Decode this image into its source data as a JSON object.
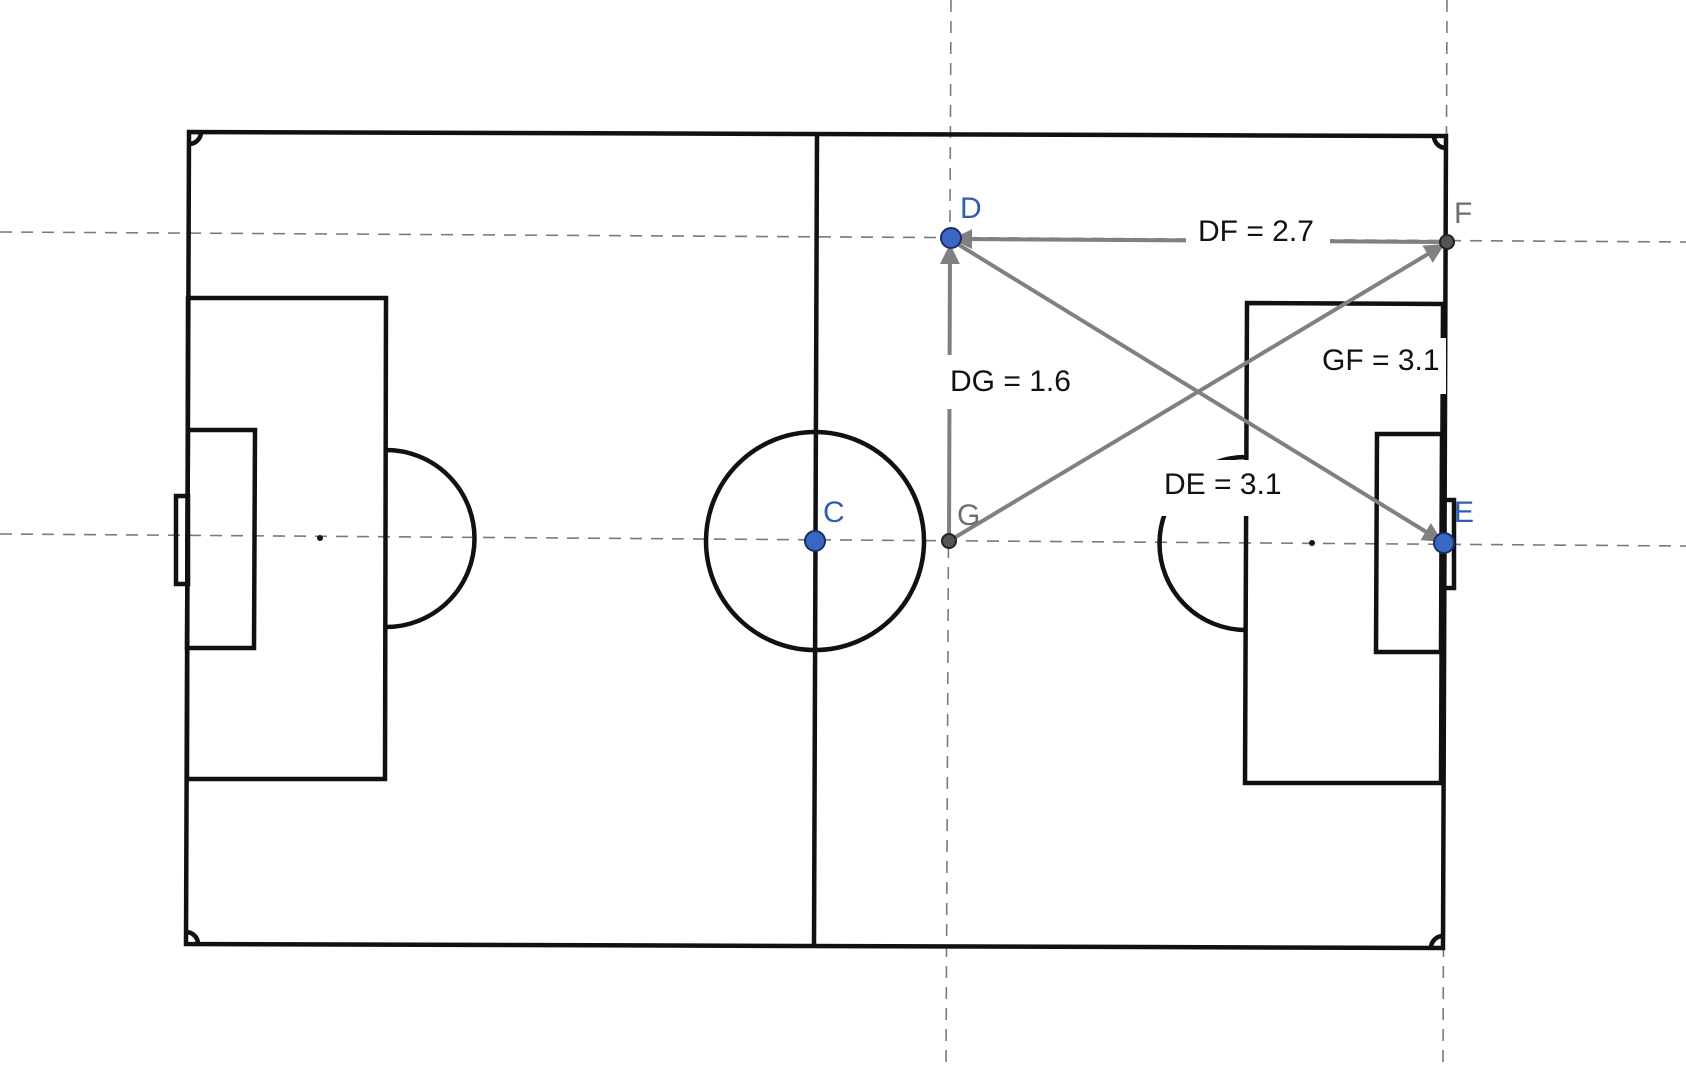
{
  "points": {
    "C": {
      "label": "C",
      "kind": "free",
      "color": "#3b67c4"
    },
    "D": {
      "label": "D",
      "kind": "free",
      "color": "#3b67c4"
    },
    "E": {
      "label": "E",
      "kind": "free",
      "color": "#3b67c4"
    },
    "F": {
      "label": "F",
      "kind": "derived",
      "color": "#555555"
    },
    "G": {
      "label": "G",
      "kind": "derived",
      "color": "#555555"
    }
  },
  "measures": {
    "DF": "DF = 2.7",
    "GF": "GF = 3.1",
    "DG": "DG = 1.6",
    "DE": "DE = 3.1"
  },
  "colors": {
    "pitch_lines": "#111111",
    "vectors": "#808080",
    "guides": "#7a7a7a",
    "free_point": "#3b67c4",
    "derived_point": "#555555"
  }
}
